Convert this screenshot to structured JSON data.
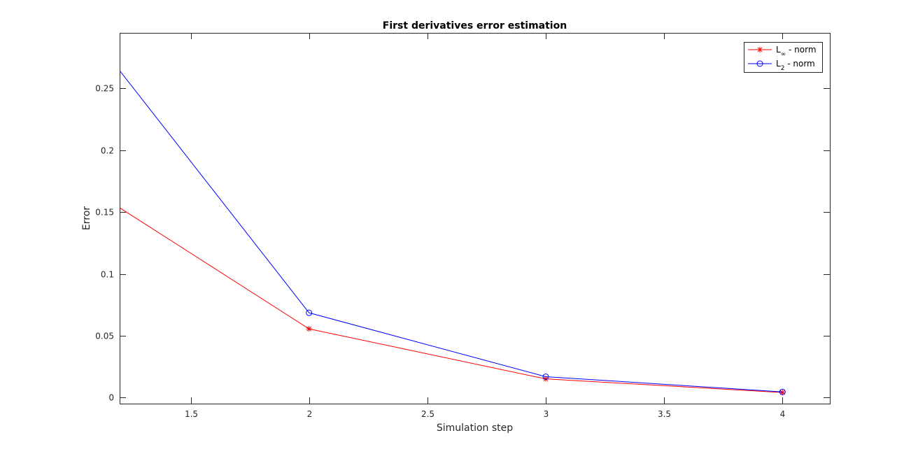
{
  "chart_data": {
    "type": "line",
    "title": "First derivatives error estimation",
    "xlabel": "Simulation step",
    "ylabel": "Error",
    "xlim": [
      1.2,
      4.2
    ],
    "ylim": [
      -0.005,
      0.295
    ],
    "x_ticks": [
      1.5,
      2,
      2.5,
      3,
      3.5,
      4
    ],
    "x_tick_labels": [
      "1.5",
      "2",
      "2.5",
      "3",
      "3.5",
      "4"
    ],
    "y_ticks": [
      0,
      0.05,
      0.1,
      0.15,
      0.2,
      0.25
    ],
    "y_tick_labels": [
      "0",
      "0.05",
      "0.1",
      "0.15",
      "0.2",
      "0.25"
    ],
    "grid": false,
    "legend_position": "top-right",
    "series": [
      {
        "name": "L∞ - norm",
        "name_main": "L",
        "name_sub": "∞",
        "name_rest": " - norm",
        "color": "#ff0000",
        "marker": "asterisk",
        "x": [
          1,
          2,
          3,
          4
        ],
        "values": [
          0.178,
          0.0555,
          0.015,
          0.004
        ]
      },
      {
        "name": "L2 - norm",
        "name_main": "L",
        "name_sub": "2",
        "name_rest": " - norm",
        "color": "#0000ff",
        "marker": "circle",
        "x": [
          1,
          2,
          3,
          4
        ],
        "values": [
          0.3135,
          0.0685,
          0.0168,
          0.0045
        ]
      }
    ]
  }
}
